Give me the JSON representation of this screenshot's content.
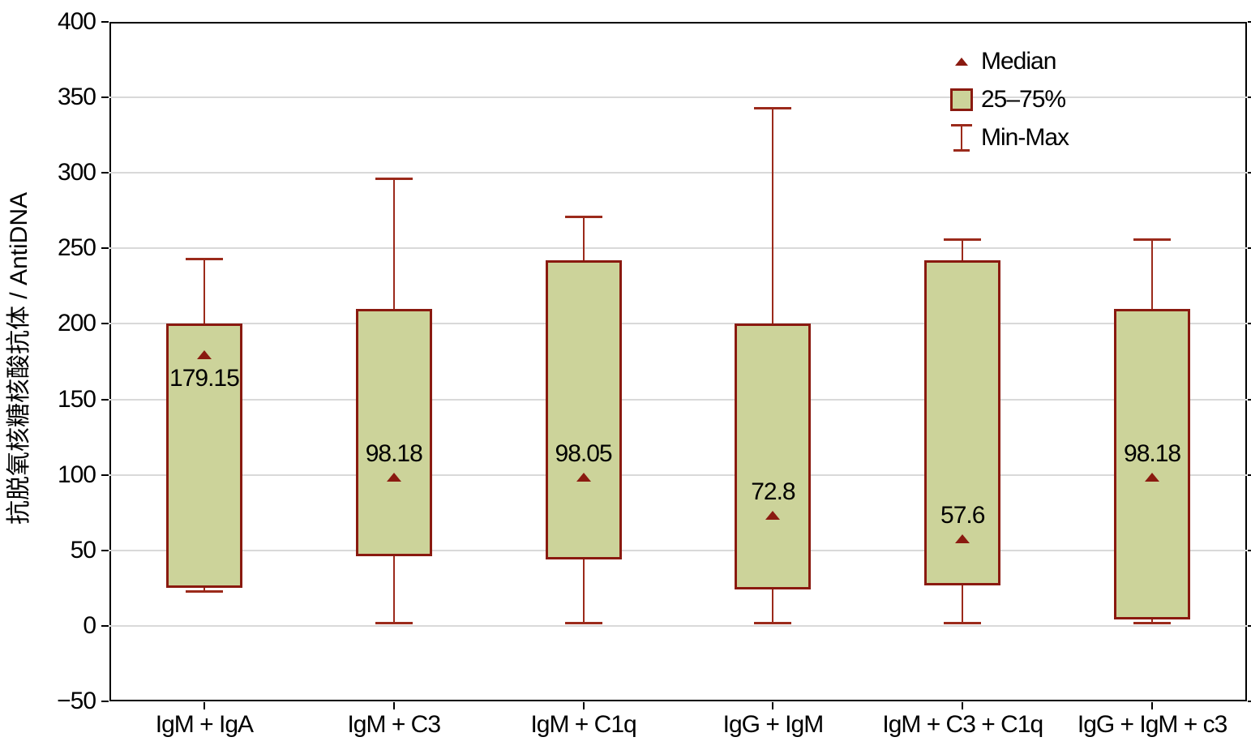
{
  "chart_data": {
    "type": "box",
    "title": "",
    "xlabel": "",
    "ylabel": "抗脱氧核糖核酸抗体 / AntiDNA",
    "ylim": [
      -50,
      400
    ],
    "ytick_step": 50,
    "grid": "horizontal-only",
    "yticks": [
      {
        "label": "400",
        "value": 400
      },
      {
        "label": "350",
        "value": 350
      },
      {
        "label": "300",
        "value": 300
      },
      {
        "label": "250",
        "value": 250
      },
      {
        "label": "200",
        "value": 200
      },
      {
        "label": "150",
        "value": 150
      },
      {
        "label": "100",
        "value": 100
      },
      {
        "label": "50",
        "value": 50
      },
      {
        "label": "0",
        "value": 0
      },
      {
        "label": "−50",
        "value": -50
      }
    ],
    "categories": [
      "IgM + IgA",
      "IgM + C3",
      "IgM + C1q",
      "IgG + IgM",
      "IgM + C3 + C1q",
      "IgG + IgM + c3"
    ],
    "boxes": [
      {
        "category": "IgM + IgA",
        "min": 23,
        "q1": 25,
        "median": 179.15,
        "q3": 200,
        "max": 243,
        "median_label": "179.15",
        "median_label_position": "below"
      },
      {
        "category": "IgM + C3",
        "min": 2,
        "q1": 46,
        "median": 98.18,
        "q3": 210,
        "max": 296,
        "median_label": "98.18",
        "median_label_position": "above"
      },
      {
        "category": "IgM + C1q",
        "min": 2,
        "q1": 44,
        "median": 98.05,
        "q3": 242,
        "max": 271,
        "median_label": "98.05",
        "median_label_position": "above"
      },
      {
        "category": "IgG + IgM",
        "min": 2,
        "q1": 24,
        "median": 72.8,
        "q3": 200,
        "max": 343,
        "median_label": "72.8",
        "median_label_position": "above"
      },
      {
        "category": "IgM + C3 + C1q",
        "min": 2,
        "q1": 27,
        "median": 57.6,
        "q3": 242,
        "max": 256,
        "median_label": "57.6",
        "median_label_position": "above"
      },
      {
        "category": "IgG + IgM + c3",
        "min": 2,
        "q1": 4,
        "median": 98.18,
        "q3": 210,
        "max": 256,
        "median_label": "98.18",
        "median_label_position": "above"
      }
    ],
    "legend": {
      "position": "top-right",
      "items": [
        {
          "type": "median-triangle",
          "label": "Median"
        },
        {
          "type": "iqr-box",
          "label": "25–75%"
        },
        {
          "type": "minmax-whisker",
          "label": "Min-Max"
        }
      ]
    },
    "colors": {
      "box_fill": "#ccd39a",
      "box_border": "#8a1a10",
      "whisker": "#9b2a1b",
      "median_marker": "#8a1a10",
      "grid": "#d9d9d9",
      "axis": "#000000",
      "text": "#000000"
    }
  }
}
